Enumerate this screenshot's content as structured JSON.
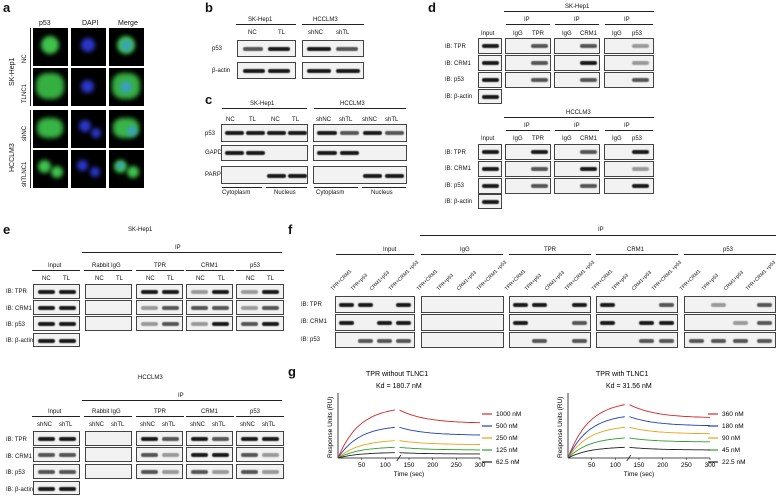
{
  "panels": {
    "a": "a",
    "b": "b",
    "c": "c",
    "d": "d",
    "e": "e",
    "f": "f",
    "g": "g"
  },
  "a": {
    "cols": [
      "p53",
      "DAPI",
      "Merge"
    ],
    "rows": [
      "NC",
      "TLNC1",
      "shNC",
      "shTLNC1"
    ],
    "groups": [
      "SK-Hep1",
      "HCCLM3"
    ]
  },
  "b": {
    "cells": [
      "SK-Hep1",
      "HCCLM3"
    ],
    "lanes": [
      "NC",
      "TL",
      "shNC",
      "shTL"
    ],
    "rows": [
      "p53",
      "β-actin"
    ]
  },
  "c": {
    "cells": [
      "SK-Hep1",
      "HCCLM3"
    ],
    "lanes": [
      "NC",
      "TL",
      "NC",
      "TL",
      "shNC",
      "shTL",
      "shNC",
      "shTL"
    ],
    "rows": [
      "p53",
      "GAPDH",
      "PARP"
    ],
    "fractions": [
      "Cytoplasm",
      "Nucleus",
      "Cytoplasm",
      "Nucleus"
    ]
  },
  "d": {
    "cell1": "SK-Hep1",
    "cell2": "HCCLM3",
    "input": "Input",
    "ip": "IP",
    "lanes": [
      "IgG",
      "TPR",
      "IgG",
      "CRM1",
      "IgG",
      "p53"
    ],
    "rows": [
      "IB: TPR",
      "IB: CRM1",
      "IB: p53",
      "IB: β-actin"
    ]
  },
  "e": {
    "cell1": "SK-Hep1",
    "cell2": "HCCLM3",
    "ip": "IP",
    "groups": [
      "Input",
      "Rabbit IgG",
      "TPR",
      "CRM1",
      "p53"
    ],
    "lanes1": [
      "NC",
      "TL"
    ],
    "lanes2": [
      "shNC",
      "shTL"
    ],
    "rows": [
      "IB: TPR",
      "IB: CRM1",
      "IB: p53",
      "IB: β-actin"
    ]
  },
  "f": {
    "ip": "IP",
    "groups": [
      "Input",
      "IgG",
      "TPR",
      "CRM1",
      "p53"
    ],
    "lanes": [
      "TPR+CRM1",
      "TPR+p53",
      "CRM1+p53",
      "TPR+CRM1 +p53"
    ],
    "rows": [
      "IB: TPR",
      "IB: CRM1",
      "IB: p53"
    ]
  },
  "chart_data": [
    {
      "type": "line",
      "title": "TPR without TLNC1",
      "annotation": "Kd = 180.7 nM",
      "xlabel": "Time (sec)",
      "ylabel": "Response Units (RU)",
      "xlim": [
        0,
        300
      ],
      "xticks": [
        50,
        100,
        150,
        200,
        250,
        300
      ],
      "series": [
        {
          "name": "1000 nM",
          "color": "#d62728",
          "x": [
            0,
            120,
            300
          ],
          "y": [
            0,
            36,
            26
          ]
        },
        {
          "name": "500 nM",
          "color": "#1f3fbf",
          "x": [
            0,
            120,
            300
          ],
          "y": [
            0,
            23,
            17
          ]
        },
        {
          "name": "250 nM",
          "color": "#e8a317",
          "x": [
            0,
            120,
            300
          ],
          "y": [
            0,
            13,
            10
          ]
        },
        {
          "name": "125 nM",
          "color": "#2ca02c",
          "x": [
            0,
            120,
            300
          ],
          "y": [
            0,
            8,
            6
          ]
        },
        {
          "name": "62.5 nM",
          "color": "#222222",
          "x": [
            0,
            120,
            300
          ],
          "y": [
            0,
            4,
            3
          ]
        }
      ]
    },
    {
      "type": "line",
      "title": "TPR with TLNC1",
      "annotation": "Kd = 31.56 nM",
      "xlabel": "Time (sec)",
      "ylabel": "Response Units (RU)",
      "xlim": [
        0,
        300
      ],
      "xticks": [
        50,
        100,
        150,
        200,
        250,
        300
      ],
      "series": [
        {
          "name": "360 nM",
          "color": "#d62728",
          "x": [
            0,
            120,
            300
          ],
          "y": [
            0,
            40,
            30
          ]
        },
        {
          "name": "180 nM",
          "color": "#1f3fbf",
          "x": [
            0,
            120,
            300
          ],
          "y": [
            0,
            31,
            24
          ]
        },
        {
          "name": "90 nM",
          "color": "#e8a317",
          "x": [
            0,
            120,
            300
          ],
          "y": [
            0,
            23,
            18
          ]
        },
        {
          "name": "45 nM",
          "color": "#2ca02c",
          "x": [
            0,
            120,
            300
          ],
          "y": [
            0,
            15,
            12
          ]
        },
        {
          "name": "22.5 nM",
          "color": "#222222",
          "x": [
            0,
            120,
            300
          ],
          "y": [
            0,
            8,
            6
          ]
        }
      ]
    }
  ]
}
